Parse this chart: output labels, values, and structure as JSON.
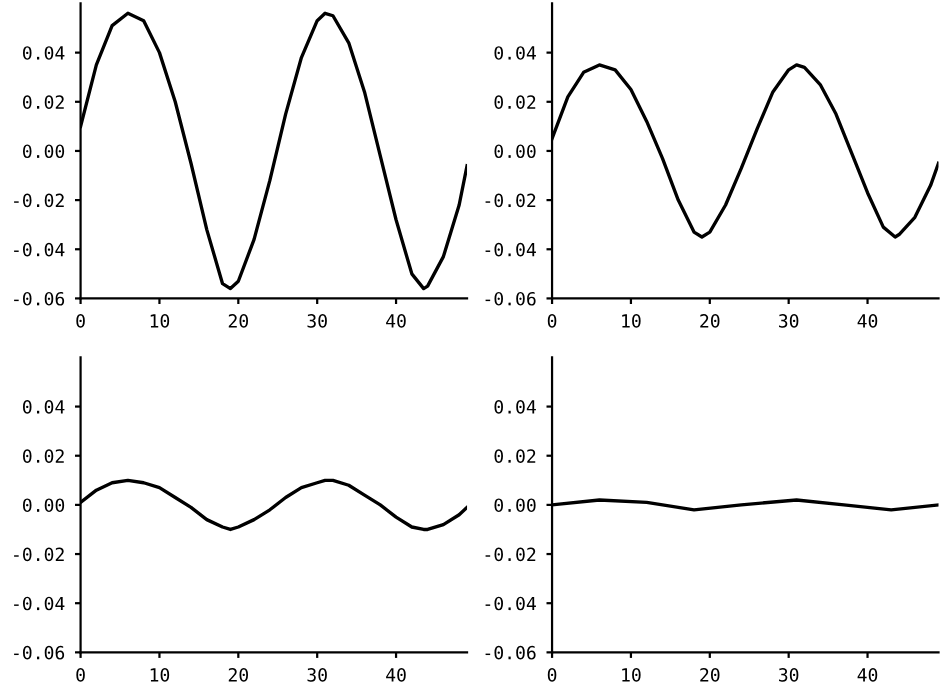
{
  "chart_data": [
    {
      "type": "line",
      "x": [
        0,
        2,
        4,
        6,
        8,
        10,
        12,
        14,
        16,
        18,
        19,
        20,
        22,
        24,
        26,
        28,
        30,
        31,
        32,
        34,
        36,
        38,
        40,
        42,
        43.5,
        44,
        46,
        48,
        49
      ],
      "series": [
        {
          "color": "#000000",
          "values": [
            0.01,
            0.035,
            0.051,
            0.056,
            0.053,
            0.04,
            0.02,
            -0.005,
            -0.032,
            -0.054,
            -0.056,
            -0.053,
            -0.036,
            -0.012,
            0.015,
            0.038,
            0.053,
            0.056,
            0.055,
            0.044,
            0.024,
            -0.002,
            -0.028,
            -0.05,
            -0.056,
            -0.055,
            -0.043,
            -0.022,
            -0.006
          ]
        }
      ],
      "xlim": [
        0,
        49
      ],
      "ylim": [
        -0.06,
        0.06
      ],
      "xticks": [
        0,
        10,
        20,
        30,
        40
      ],
      "yticks": [
        {
          "value": -0.06,
          "label": "-0.06"
        },
        {
          "value": -0.04,
          "label": "-0.04"
        },
        {
          "value": -0.02,
          "label": "-0.02"
        },
        {
          "value": 0,
          "label": "0.00"
        },
        {
          "value": 0.02,
          "label": "0.02"
        },
        {
          "value": 0.04,
          "label": "0.04"
        }
      ],
      "grid": false,
      "legend": false
    },
    {
      "type": "line",
      "x": [
        0,
        2,
        4,
        6,
        8,
        10,
        12,
        14,
        16,
        18,
        19,
        20,
        22,
        24,
        26,
        28,
        30,
        31,
        32,
        34,
        36,
        38,
        40,
        42,
        43.5,
        44,
        46,
        48,
        49
      ],
      "series": [
        {
          "color": "#000000",
          "values": [
            0.005,
            0.022,
            0.032,
            0.035,
            0.033,
            0.025,
            0.012,
            -0.003,
            -0.02,
            -0.033,
            -0.035,
            -0.033,
            -0.022,
            -0.007,
            0.009,
            0.024,
            0.033,
            0.035,
            0.034,
            0.027,
            0.015,
            -0.001,
            -0.017,
            -0.031,
            -0.035,
            -0.034,
            -0.027,
            -0.014,
            -0.005
          ]
        }
      ],
      "xlim": [
        0,
        49
      ],
      "ylim": [
        -0.06,
        0.06
      ],
      "xticks": [
        0,
        10,
        20,
        30,
        40
      ],
      "yticks": [
        {
          "value": -0.06,
          "label": "-0.06"
        },
        {
          "value": -0.04,
          "label": "-0.04"
        },
        {
          "value": -0.02,
          "label": "-0.02"
        },
        {
          "value": 0,
          "label": "0.00"
        },
        {
          "value": 0.02,
          "label": "0.02"
        },
        {
          "value": 0.04,
          "label": "0.04"
        }
      ],
      "grid": false,
      "legend": false
    },
    {
      "type": "line",
      "x": [
        0,
        2,
        4,
        6,
        8,
        10,
        12,
        14,
        16,
        18,
        19,
        20,
        22,
        24,
        26,
        28,
        30,
        31,
        32,
        34,
        36,
        38,
        40,
        42,
        43.5,
        44,
        46,
        48,
        49
      ],
      "series": [
        {
          "color": "#000000",
          "values": [
            0.001,
            0.006,
            0.009,
            0.01,
            0.009,
            0.007,
            0.003,
            -0.001,
            -0.006,
            -0.009,
            -0.01,
            -0.009,
            -0.006,
            -0.002,
            0.003,
            0.007,
            0.009,
            0.01,
            0.01,
            0.008,
            0.004,
            0.0,
            -0.005,
            -0.009,
            -0.01,
            -0.01,
            -0.008,
            -0.004,
            -0.001
          ]
        }
      ],
      "xlim": [
        0,
        49
      ],
      "ylim": [
        -0.06,
        0.06
      ],
      "xticks": [
        0,
        10,
        20,
        30,
        40
      ],
      "yticks": [
        {
          "value": -0.06,
          "label": "-0.06"
        },
        {
          "value": -0.04,
          "label": "-0.04"
        },
        {
          "value": -0.02,
          "label": "-0.02"
        },
        {
          "value": 0,
          "label": "0.00"
        },
        {
          "value": 0.02,
          "label": "0.02"
        },
        {
          "value": 0.04,
          "label": "0.04"
        }
      ],
      "grid": false,
      "legend": false
    },
    {
      "type": "line",
      "x": [
        0,
        6,
        12,
        18,
        24,
        31,
        37,
        43,
        49
      ],
      "series": [
        {
          "color": "#000000",
          "values": [
            0.0,
            0.002,
            0.001,
            -0.002,
            0.0,
            0.002,
            0.0,
            -0.002,
            0.0
          ]
        }
      ],
      "xlim": [
        0,
        49
      ],
      "ylim": [
        -0.06,
        0.06
      ],
      "xticks": [
        0,
        10,
        20,
        30,
        40
      ],
      "yticks": [
        {
          "value": -0.06,
          "label": "-0.06"
        },
        {
          "value": -0.04,
          "label": "-0.04"
        },
        {
          "value": -0.02,
          "label": "-0.02"
        },
        {
          "value": 0,
          "label": "0.00"
        },
        {
          "value": 0.02,
          "label": "0.02"
        },
        {
          "value": 0.04,
          "label": "0.04"
        }
      ],
      "grid": false,
      "legend": false
    }
  ]
}
